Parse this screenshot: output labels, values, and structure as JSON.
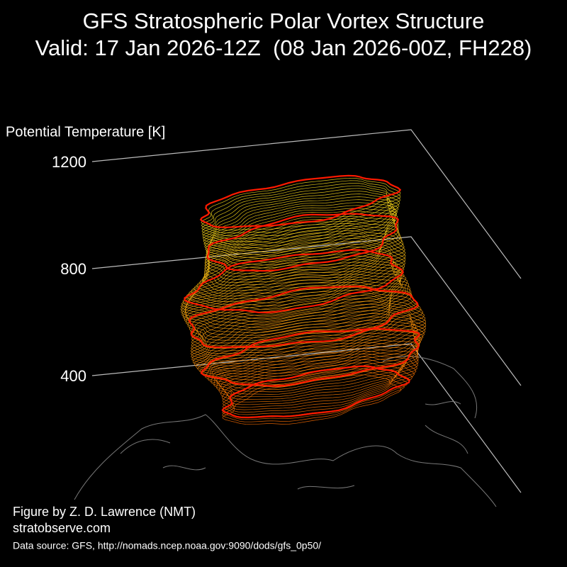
{
  "chart_data": {
    "type": "vortex3d",
    "title": "GFS Stratospheric Polar Vortex Structure",
    "subtitle": "Valid: 17 Jan 2026-12Z  (08 Jan 2026-00Z, FH228)",
    "zlabel": "Potential Temperature [K]",
    "zlim": [
      400,
      1200
    ],
    "zticks": [
      400,
      800,
      1200
    ]
  },
  "credits": {
    "author": "Figure by Z. D. Lawrence (NMT)",
    "site": "stratobserve.com",
    "source": "Data source: GFS, http://nomads.ncep.noaa.gov:9090/dods/gfs_0p50/"
  }
}
